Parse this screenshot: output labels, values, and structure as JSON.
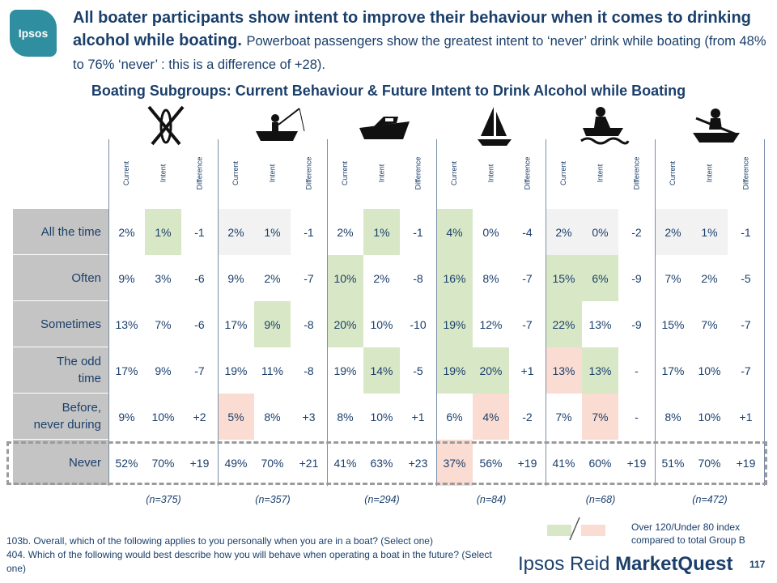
{
  "logo": {
    "text": "Ipsos"
  },
  "headline": {
    "main": "All boater participants show intent to improve their behaviour when it comes to drinking alcohol while boating.",
    "sub": "Powerboat passengers show the greatest intent to ‘never’ drink while boating (from 48% to 76% ‘never’ : this is a difference of +28)."
  },
  "chart_title": "Boating Subgroups: Current Behaviour & Future Intent to Drink Alcohol while Boating",
  "groups": [
    {
      "icon": "kayak-paddle-icon",
      "n": "(n=375)"
    },
    {
      "icon": "fishing-boat-icon",
      "n": "(n=357)"
    },
    {
      "icon": "powerboat-icon",
      "n": "(n=294)"
    },
    {
      "icon": "sailboat-icon",
      "n": "(n=84)"
    },
    {
      "icon": "personal-watercraft-icon",
      "n": "(n=68)"
    },
    {
      "icon": "rowboat-icon",
      "n": "(n=472)"
    }
  ],
  "column_labels": [
    "Current",
    "Intent",
    "Difference"
  ],
  "rows": [
    {
      "label": "All the time",
      "cells": [
        [
          "2%",
          "1%",
          "-1"
        ],
        [
          "2%",
          "1%",
          "-1"
        ],
        [
          "2%",
          "1%",
          "-1"
        ],
        [
          "4%",
          "0%",
          "-4"
        ],
        [
          "2%",
          "0%",
          "-2"
        ],
        [
          "2%",
          "1%",
          "-1"
        ]
      ]
    },
    {
      "label": "Often",
      "cells": [
        [
          "9%",
          "3%",
          "-6"
        ],
        [
          "9%",
          "2%",
          "-7"
        ],
        [
          "10%",
          "2%",
          "-8"
        ],
        [
          "16%",
          "8%",
          "-7"
        ],
        [
          "15%",
          "6%",
          "-9"
        ],
        [
          "7%",
          "2%",
          "-5"
        ]
      ]
    },
    {
      "label": "Sometimes",
      "cells": [
        [
          "13%",
          "7%",
          "-6"
        ],
        [
          "17%",
          "9%",
          "-8"
        ],
        [
          "20%",
          "10%",
          "-10"
        ],
        [
          "19%",
          "12%",
          "-7"
        ],
        [
          "22%",
          "13%",
          "-9"
        ],
        [
          "15%",
          "7%",
          "-7"
        ]
      ]
    },
    {
      "label": "The odd time",
      "cells": [
        [
          "17%",
          "9%",
          "-7"
        ],
        [
          "19%",
          "11%",
          "-8"
        ],
        [
          "19%",
          "14%",
          "-5"
        ],
        [
          "19%",
          "20%",
          "+1"
        ],
        [
          "13%",
          "13%",
          "-"
        ],
        [
          "17%",
          "10%",
          "-7"
        ]
      ]
    },
    {
      "label": "Before, never during",
      "cells": [
        [
          "9%",
          "10%",
          "+2"
        ],
        [
          "5%",
          "8%",
          "+3"
        ],
        [
          "8%",
          "10%",
          "+1"
        ],
        [
          "6%",
          "4%",
          "-2"
        ],
        [
          "7%",
          "7%",
          "-"
        ],
        [
          "8%",
          "10%",
          "+1"
        ]
      ]
    },
    {
      "label": "Never",
      "cells": [
        [
          "52%",
          "70%",
          "+19"
        ],
        [
          "49%",
          "70%",
          "+21"
        ],
        [
          "41%",
          "63%",
          "+23"
        ],
        [
          "37%",
          "56%",
          "+19"
        ],
        [
          "41%",
          "60%",
          "+19"
        ],
        [
          "51%",
          "70%",
          "+19"
        ]
      ]
    }
  ],
  "highlights": {
    "green": [
      "0-0-1",
      "1-0-1",
      "2-1-1",
      "3-1-1",
      "3-2-1",
      "0-3-0",
      "1-3-0",
      "2-3-0",
      "3-3-0",
      "4-3-0",
      "5-3-0",
      "1-4-0",
      "2-4-0",
      "3-4-0",
      "3-3-1",
      "4-2-1"
    ],
    "pink": [
      "4-1-0",
      "5-3-0",
      "4-3-1",
      "4-4-1",
      "3-4-0"
    ]
  },
  "colors": {
    "green": "#d8e8c6",
    "pink": "#fadcd2",
    "label_bg": "#c4c4c4",
    "text": "#1b3f6b"
  },
  "footnote": {
    "line1": "103b. Overall, which of the following applies to you personally when you are in a boat? (Select one)",
    "line2": "404. Which of the following would best describe how you will behave when operating a boat in the future? (Select one)"
  },
  "legend": {
    "line1": "Over 120/Under 80 index",
    "line2": "compared to total Group B"
  },
  "brand": {
    "ipsos": "Ipsos Reid",
    "mq": "MarketQuest"
  },
  "page_number": "117"
}
